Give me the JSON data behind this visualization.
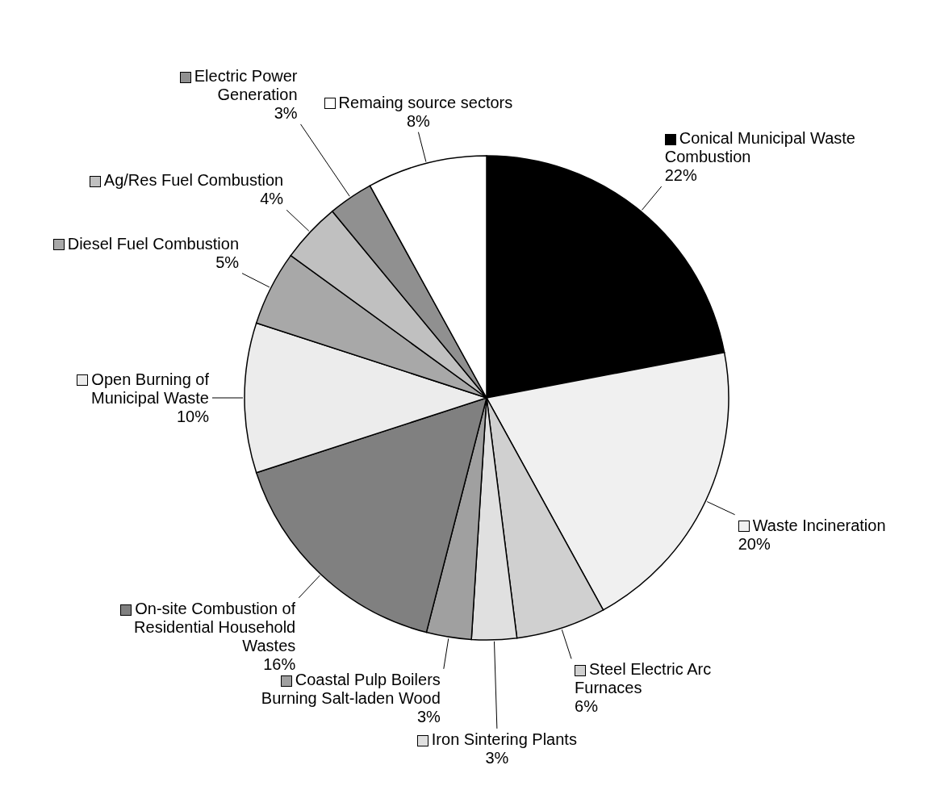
{
  "chart_data": {
    "type": "pie",
    "categories": [
      "Conical Municipal Waste Combustion",
      "Waste Incineration",
      "Steel Electric Arc Furnaces",
      "Iron Sintering Plants",
      "Coastal Pulp Boilers Burning Salt-laden Wood",
      "On-site Combustion of Residential Household Wastes",
      "Open Burning of Municipal Waste",
      "Diesel Fuel Combustion",
      "Ag/Res Fuel Combustion",
      "Electric Power Generation",
      "Remaing source sectors"
    ],
    "values": [
      22,
      20,
      6,
      3,
      3,
      16,
      10,
      5,
      4,
      3,
      8
    ],
    "colors": [
      "#000000",
      "#f0f0f0",
      "#d0d0d0",
      "#e0e0e0",
      "#a0a0a0",
      "#808080",
      "#ececec",
      "#a8a8a8",
      "#c0c0c0",
      "#909090",
      "#ffffff"
    ],
    "value_labels": [
      "22%",
      "20%",
      "6%",
      "3%",
      "3%",
      "16%",
      "10%",
      "5%",
      "4%",
      "3%",
      "8%"
    ],
    "legend": true
  }
}
